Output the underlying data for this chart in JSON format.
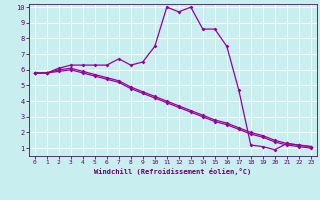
{
  "xlabel": "Windchill (Refroidissement éolien,°C)",
  "background_color": "#c8eef0",
  "line_color": "#990099",
  "xlim": [
    -0.5,
    23.5
  ],
  "ylim": [
    0.5,
    10.2
  ],
  "xticks": [
    0,
    1,
    2,
    3,
    4,
    5,
    6,
    7,
    8,
    9,
    10,
    11,
    12,
    13,
    14,
    15,
    16,
    17,
    18,
    19,
    20,
    21,
    22,
    23
  ],
  "yticks": [
    1,
    2,
    3,
    4,
    5,
    6,
    7,
    8,
    9,
    10
  ],
  "curve1_x": [
    0,
    1,
    2,
    3,
    4,
    5,
    6,
    7,
    8,
    9,
    10,
    11,
    12,
    13,
    14,
    15,
    16,
    17,
    18,
    19,
    20,
    21,
    22,
    23
  ],
  "curve1_y": [
    5.8,
    5.8,
    6.1,
    6.3,
    6.3,
    6.3,
    6.3,
    6.7,
    6.3,
    6.5,
    7.5,
    10.0,
    9.7,
    10.0,
    8.6,
    8.6,
    7.5,
    4.7,
    1.2,
    1.1,
    0.9,
    1.3,
    1.2,
    1.1
  ],
  "curve2_x": [
    0,
    1,
    2,
    3,
    4,
    5,
    6,
    7,
    8,
    9,
    10,
    11,
    12,
    13,
    14,
    15,
    16,
    17,
    18,
    19,
    20,
    21,
    22,
    23
  ],
  "curve2_y": [
    5.8,
    5.8,
    5.9,
    6.0,
    5.8,
    5.6,
    5.4,
    5.2,
    4.8,
    4.5,
    4.2,
    3.9,
    3.6,
    3.3,
    3.0,
    2.7,
    2.5,
    2.2,
    1.9,
    1.7,
    1.4,
    1.2,
    1.1,
    1.0
  ],
  "curve3_x": [
    0,
    1,
    2,
    3,
    4,
    5,
    6,
    7,
    8,
    9,
    10,
    11,
    12,
    13,
    14,
    15,
    16,
    17,
    18,
    19,
    20,
    21,
    22,
    23
  ],
  "curve3_y": [
    5.8,
    5.8,
    6.0,
    6.1,
    5.9,
    5.7,
    5.5,
    5.3,
    4.9,
    4.6,
    4.3,
    4.0,
    3.7,
    3.4,
    3.1,
    2.8,
    2.6,
    2.3,
    2.0,
    1.8,
    1.5,
    1.3,
    1.2,
    1.1
  ]
}
